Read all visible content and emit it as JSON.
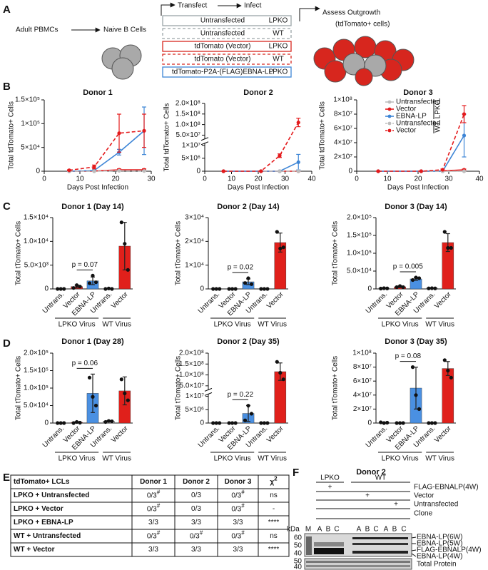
{
  "panel_labels": [
    "A",
    "B",
    "C",
    "D",
    "E",
    "F"
  ],
  "panel_a": {
    "start": "Adult PBMCs",
    "cells": "Naive B Cells",
    "transfect": "Transfect",
    "infect": "Infect",
    "conditions": [
      {
        "label": "Untransfected",
        "virus": "LPKO",
        "color": "#9aa5a8",
        "dash": false
      },
      {
        "label": "Untransfected",
        "virus": "WT",
        "color": "#9aa5a8",
        "dash": true
      },
      {
        "label": "tdTomato (Vector)",
        "virus": "LPKO",
        "color": "#d7261e",
        "dash": false
      },
      {
        "label": "tdTomato (Vector)",
        "virus": "WT",
        "color": "#d7261e",
        "dash": true
      },
      {
        "label": "tdTomato-P2A-(FLAG)EBNA-LP",
        "virus": "LPKO",
        "color": "#3d85d6",
        "dash": false
      }
    ],
    "outcome": "Assess Outgrowth",
    "outcome_note": "(tdTomato+ cells)"
  },
  "chart_data": [
    {
      "type": "line",
      "title": "Donor 1",
      "xlabel": "Days Post Infection",
      "ylabel": "Total tdTomato+ Cells",
      "xlim": [
        0,
        30
      ],
      "xticks": [
        0,
        10,
        20,
        30
      ],
      "ylim": [
        0,
        150000
      ],
      "yticks": [
        0,
        {
          "value": 50000,
          "label": "5×10⁴"
        },
        {
          "value": 100000,
          "label": "1×10⁵"
        },
        {
          "value": 150000,
          "label": "1.5×10⁵"
        }
      ],
      "x": [
        7,
        14,
        21,
        28
      ],
      "series": [
        {
          "color": "#bdbdbd",
          "dash": false,
          "values": [
            0,
            0,
            1500,
            2000
          ],
          "errors": [
            0,
            0,
            1000,
            1000
          ]
        },
        {
          "color": "#e41a1c",
          "dash": false,
          "values": [
            0,
            500,
            3000,
            3000
          ],
          "errors": [
            0,
            300,
            2000,
            2000
          ]
        },
        {
          "color": "#3d85d6",
          "dash": false,
          "values": [
            0,
            1500,
            40000,
            85000
          ],
          "errors": [
            0,
            1000,
            6000,
            50000
          ]
        },
        {
          "color": "#bdbdbd",
          "dash": true,
          "values": [
            0,
            0,
            1000,
            500
          ],
          "errors": [
            0,
            0,
            500,
            500
          ]
        },
        {
          "color": "#e41a1c",
          "dash": true,
          "values": [
            2000,
            9000,
            80000,
            85000
          ],
          "errors": [
            1000,
            4000,
            40000,
            35000
          ]
        }
      ]
    },
    {
      "type": "line",
      "title": "Donor 2",
      "xlabel": "Days Post Infection",
      "ylabel": "Total tdTomato+ Cells",
      "xlim": [
        0,
        40
      ],
      "xticks": [
        0,
        10,
        20,
        30,
        40
      ],
      "ylim": [
        0,
        200000000
      ],
      "ybreak": [
        11000000,
        30000000
      ],
      "yticks": [
        0,
        {
          "value": 5000000,
          "label": "5×10⁶"
        },
        {
          "value": 10000000,
          "label": "1×10⁷"
        },
        {
          "value": 50000000,
          "label": "5.0×10⁷"
        },
        {
          "value": 100000000,
          "label": "1.0×10⁸"
        },
        {
          "value": 150000000,
          "label": "1.5×10⁸"
        },
        {
          "value": 200000000,
          "label": "2.0×10⁸"
        }
      ],
      "x": [
        7,
        21,
        28,
        35
      ],
      "series": [
        {
          "color": "#bdbdbd",
          "dash": false,
          "values": [
            0,
            0,
            0,
            0
          ],
          "errors": [
            0,
            0,
            0,
            0
          ]
        },
        {
          "color": "#e41a1c",
          "dash": false,
          "values": [
            0,
            0,
            0,
            0
          ],
          "errors": [
            0,
            0,
            0,
            0
          ]
        },
        {
          "color": "#3d85d6",
          "dash": false,
          "values": [
            0,
            0,
            0,
            3500000
          ],
          "errors": [
            0,
            0,
            0,
            3000000
          ]
        },
        {
          "color": "#bdbdbd",
          "dash": true,
          "values": [
            0,
            0,
            0,
            0
          ],
          "errors": [
            0,
            0,
            0,
            0
          ]
        },
        {
          "color": "#e41a1c",
          "dash": true,
          "values": [
            0,
            0,
            6000000,
            110000000
          ],
          "errors": [
            0,
            0,
            700000,
            20000000
          ]
        }
      ]
    },
    {
      "type": "line",
      "title": "Donor 3",
      "xlabel": "Days Post Infection",
      "ylabel": "Total tdTomato+ Cells",
      "xlim": [
        0,
        40
      ],
      "xticks": [
        0,
        10,
        20,
        30,
        40
      ],
      "ylim": [
        0,
        100000000
      ],
      "yticks": [
        0,
        {
          "value": 20000000,
          "label": "2×10⁷"
        },
        {
          "value": 40000000,
          "label": "4×10⁷"
        },
        {
          "value": 60000000,
          "label": "6×10⁷"
        },
        {
          "value": 80000000,
          "label": "8×10⁷"
        },
        {
          "value": 100000000,
          "label": "1×10⁸"
        }
      ],
      "x": [
        7,
        21,
        28,
        35
      ],
      "legend": true,
      "series": [
        {
          "name": "Untransfected",
          "group": "LPKO",
          "color": "#bdbdbd",
          "dash": false,
          "values": [
            0,
            0,
            0,
            0
          ],
          "errors": [
            0,
            0,
            0,
            0
          ]
        },
        {
          "name": "Vector",
          "group": "LPKO",
          "color": "#e41a1c",
          "dash": false,
          "values": [
            0,
            0,
            500000,
            2000000
          ],
          "errors": [
            0,
            0,
            300000,
            1000000
          ]
        },
        {
          "name": "EBNA-LP",
          "group": "LPKO",
          "color": "#3d85d6",
          "dash": false,
          "values": [
            0,
            0,
            0,
            50000000
          ],
          "errors": [
            0,
            0,
            0,
            30000000
          ]
        },
        {
          "name": "Untransfected",
          "group": "WT",
          "color": "#bdbdbd",
          "dash": true,
          "values": [
            0,
            0,
            0,
            0
          ],
          "errors": [
            0,
            0,
            0,
            0
          ]
        },
        {
          "name": "Vector",
          "group": "WT",
          "color": "#e41a1c",
          "dash": true,
          "values": [
            0,
            0,
            2000000,
            80000000
          ],
          "errors": [
            0,
            0,
            1000000,
            12000000
          ]
        }
      ]
    },
    {
      "type": "bar",
      "title": "Donor 1 (Day 14)",
      "ylabel": "Total tTomato+ Cells",
      "categories": [
        "Untrans.",
        "Vector",
        "EBNA-LP",
        "Untrans.",
        "Vector"
      ],
      "groups": [
        "LPKO Virus",
        "WT Virus"
      ],
      "colors": [
        "#c8c8c8",
        "#e0201b",
        "#4a90e2",
        "#c8c8c8",
        "#e0201b"
      ],
      "ylim": [
        0,
        15000
      ],
      "yticks": [
        0,
        {
          "value": 5000,
          "label": "5.0×10³"
        },
        {
          "value": 10000,
          "label": "1.0×10⁴"
        },
        {
          "value": 15000,
          "label": "1.5×10⁴"
        }
      ],
      "values": [
        30,
        500,
        1700,
        50,
        9000
      ],
      "errors": [
        20,
        300,
        800,
        50,
        5000
      ],
      "points": [
        [
          0,
          0,
          0
        ],
        [
          200,
          800,
          500
        ],
        [
          1200,
          2800,
          1400
        ],
        [
          0,
          100,
          0
        ],
        [
          14000,
          9500,
          4000
        ]
      ],
      "annotation": "p = 0.07"
    },
    {
      "type": "bar",
      "title": "Donor 2 (Day 14)",
      "ylabel": "Total tTomato+ Cells",
      "categories": [
        "Untrans.",
        "Vector",
        "EBNA-LP",
        "Untrans.",
        "Vector"
      ],
      "groups": [
        "LPKO Virus",
        "WT Virus"
      ],
      "colors": [
        "#c8c8c8",
        "#e0201b",
        "#4a90e2",
        "#c8c8c8",
        "#e0201b"
      ],
      "ylim": [
        0,
        30000
      ],
      "yticks": [
        0,
        {
          "value": 10000,
          "label": "1×10⁴"
        },
        {
          "value": 20000,
          "label": "2×10⁴"
        },
        {
          "value": 30000,
          "label": "3×10⁴"
        }
      ],
      "values": [
        0,
        0,
        3000,
        0,
        19500
      ],
      "errors": [
        0,
        0,
        1200,
        0,
        4000
      ],
      "points": [
        [
          0,
          0,
          0
        ],
        [
          0,
          0,
          0
        ],
        [
          2500,
          4500,
          2000
        ],
        [
          0,
          0,
          0
        ],
        [
          24000,
          17000,
          17500
        ]
      ],
      "annotation": "p = 0.02"
    },
    {
      "type": "bar",
      "title": "Donor 3 (Day 14)",
      "ylabel": "Total tTomato+ Cells",
      "categories": [
        "Untrans.",
        "Vector",
        "EBNA-LP",
        "Untrans.",
        "Vector"
      ],
      "groups": [
        "LPKO Virus",
        "WT Virus"
      ],
      "colors": [
        "#c8c8c8",
        "#e0201b",
        "#4a90e2",
        "#c8c8c8",
        "#e0201b"
      ],
      "ylim": [
        0,
        200000
      ],
      "yticks": [
        0,
        {
          "value": 50000,
          "label": "5.0×10⁴"
        },
        {
          "value": 100000,
          "label": "1.0×10⁵"
        },
        {
          "value": 150000,
          "label": "1.5×10⁵"
        },
        {
          "value": 200000,
          "label": "2.0×10⁵"
        }
      ],
      "values": [
        2000,
        6000,
        28000,
        2000,
        130000
      ],
      "errors": [
        1000,
        2000,
        4000,
        500,
        25000
      ],
      "points": [
        [
          1000,
          2000,
          1500
        ],
        [
          5000,
          8000,
          5000
        ],
        [
          25000,
          32000,
          30000
        ],
        [
          1500,
          2000,
          1500
        ],
        [
          160000,
          115000,
          115000
        ]
      ],
      "annotation": "p = 0.005"
    },
    {
      "type": "bar",
      "title": "Donor 1 (Day 28)",
      "ylabel": "Total tTomato+ Cells",
      "categories": [
        "Untrans.",
        "Vector",
        "EBNA-LP",
        "Untrans.",
        "Vector"
      ],
      "groups": [
        "LPKO Virus",
        "WT Virus"
      ],
      "colors": [
        "#c8c8c8",
        "#e0201b",
        "#4a90e2",
        "#c8c8c8",
        "#e0201b"
      ],
      "ylim": [
        0,
        200000
      ],
      "yticks": [
        0,
        {
          "value": 50000,
          "label": "5.0×10⁴"
        },
        {
          "value": 100000,
          "label": "1.0×10⁵"
        },
        {
          "value": 150000,
          "label": "1.5×10⁵"
        },
        {
          "value": 200000,
          "label": "2.0×10⁵"
        }
      ],
      "values": [
        500,
        2000,
        85000,
        5000,
        92000
      ],
      "errors": [
        500,
        2000,
        55000,
        2000,
        40000
      ],
      "points": [
        [
          0,
          0,
          0
        ],
        [
          0,
          3000,
          1000
        ],
        [
          130000,
          75000,
          50000
        ],
        [
          3000,
          6000,
          5000
        ],
        [
          125000,
          85000,
          65000
        ]
      ],
      "annotation": "p = 0.06"
    },
    {
      "type": "bar",
      "title": "Donor 2 (Day 35)",
      "ylabel": "Total tTomato+ Cells",
      "categories": [
        "Untrans.",
        "Vector",
        "EBNA-LP",
        "Untrans.",
        "Vector"
      ],
      "groups": [
        "LPKO Virus",
        "WT Virus"
      ],
      "colors": [
        "#c8c8c8",
        "#e0201b",
        "#4a90e2",
        "#c8c8c8",
        "#e0201b"
      ],
      "ylim": [
        0,
        200000000
      ],
      "ybreak": [
        11000000,
        30000000
      ],
      "yticks": [
        0,
        {
          "value": 5000000,
          "label": "5×10⁶"
        },
        {
          "value": 10000000,
          "label": "1×10⁷"
        },
        {
          "value": 50000000,
          "label": "5.0×10⁷"
        },
        {
          "value": 100000000,
          "label": "1.0×10⁸"
        },
        {
          "value": 150000000,
          "label": "1.5×10⁸"
        },
        {
          "value": 200000000,
          "label": "2.0×10⁸"
        }
      ],
      "values": [
        0,
        0,
        3600000,
        0,
        115000000
      ],
      "errors": [
        0,
        0,
        3000000,
        0,
        40000000
      ],
      "points": [
        [
          0,
          0,
          0
        ],
        [
          0,
          0,
          0
        ],
        [
          1000000,
          6500000,
          3500000
        ],
        [
          0,
          0,
          0
        ],
        [
          160000000,
          110000000,
          80000000
        ]
      ],
      "annotation": "p = 0.22"
    },
    {
      "type": "bar",
      "title": "Donor 3 (Day 35)",
      "ylabel": "Total tTomato+ Cells",
      "categories": [
        "Untrans.",
        "Vector",
        "EBNA-LP",
        "Untrans.",
        "Vector"
      ],
      "groups": [
        "LPKO Virus",
        "WT Virus"
      ],
      "colors": [
        "#c8c8c8",
        "#e0201b",
        "#4a90e2",
        "#c8c8c8",
        "#e0201b"
      ],
      "ylim": [
        0,
        100000000
      ],
      "yticks": [
        0,
        {
          "value": 20000000,
          "label": "2×10⁷"
        },
        {
          "value": 40000000,
          "label": "4×10⁷"
        },
        {
          "value": 60000000,
          "label": "6×10⁷"
        },
        {
          "value": 80000000,
          "label": "8×10⁷"
        },
        {
          "value": 100000000,
          "label": "1×10⁸"
        }
      ],
      "values": [
        500000,
        0,
        50000000,
        0,
        78000000
      ],
      "errors": [
        500000,
        0,
        30000000,
        0,
        10000000
      ],
      "points": [
        [
          1000000,
          0,
          500000
        ],
        [
          0,
          0,
          0
        ],
        [
          80000000,
          40000000,
          20000000
        ],
        [
          0,
          0,
          0
        ],
        [
          90000000,
          75000000,
          65000000
        ]
      ],
      "annotation": "p = 0.08"
    }
  ],
  "table": {
    "header": [
      "tdTomato+ LCLs",
      "Donor 1",
      "Donor 2",
      "Donor 3",
      {
        "text": "χ",
        "sup": "2"
      }
    ],
    "rows": [
      [
        "LPKO + Untransfected",
        {
          "text": "0/3",
          "sup": "#"
        },
        "0/3",
        {
          "text": "0/3",
          "sup": "#"
        },
        "ns"
      ],
      [
        "LPKO + Vector",
        {
          "text": "0/3",
          "sup": "#"
        },
        "0/3",
        {
          "text": "0/3",
          "sup": "#"
        },
        "-"
      ],
      [
        "LPKO + EBNA-LP",
        "3/3",
        "3/3",
        "3/3",
        "****"
      ],
      [
        "WT + Untransfected",
        {
          "text": "0/3",
          "sup": "#"
        },
        {
          "text": "0/3",
          "sup": "#"
        },
        {
          "text": "0/3",
          "sup": "#"
        },
        "ns"
      ],
      [
        "WT + Vector",
        "3/3",
        "3/3",
        "3/3",
        "****"
      ]
    ]
  },
  "blot": {
    "title": "Donor 2",
    "groups": [
      "LPKO",
      "WT"
    ],
    "rows": [
      {
        "label": "FLAG-EBNALP(4W)",
        "mark": "+"
      },
      {
        "label": "Vector",
        "mark": "+"
      },
      {
        "label": "Untransfected",
        "mark": "+"
      }
    ],
    "clone_label": "Clone",
    "lanes": [
      "M",
      "A",
      "B",
      "C",
      "A",
      "B",
      "C",
      "A",
      "B",
      "C"
    ],
    "kda": "kDa",
    "markers": [
      60,
      50,
      40
    ],
    "markers_lower": [
      50,
      40
    ],
    "bands": [
      "EBNA-LP(6W)",
      "EBNA-LP(5W)",
      "FLAG-EBNALP(4W)",
      "EBNA-LP(4W)"
    ],
    "loading": "Total Protein"
  }
}
